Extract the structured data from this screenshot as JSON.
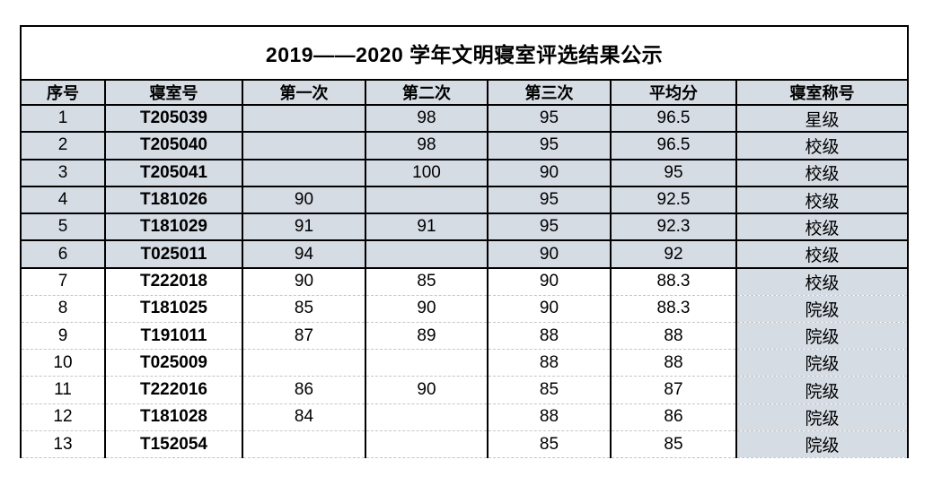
{
  "page": {
    "title": "2019——2020 学年文明寝室评选结果公示"
  },
  "table": {
    "headers": [
      "序号",
      "寝室号",
      "第一次",
      "第二次",
      "第三次",
      "平均分",
      "寝室称号"
    ],
    "rows": [
      {
        "no": "1",
        "room": "T205039",
        "score1": "",
        "score2": "98",
        "score3": "95",
        "avg": "96.5",
        "rank": "星级"
      },
      {
        "no": "2",
        "room": "T205040",
        "score1": "",
        "score2": "98",
        "score3": "95",
        "avg": "96.5",
        "rank": "校级"
      },
      {
        "no": "3",
        "room": "T205041",
        "score1": "",
        "score2": "100",
        "score3": "90",
        "avg": "95",
        "rank": "校级"
      },
      {
        "no": "4",
        "room": "T181026",
        "score1": "90",
        "score2": "",
        "score3": "95",
        "avg": "92.5",
        "rank": "校级"
      },
      {
        "no": "5",
        "room": "T181029",
        "score1": "91",
        "score2": "91",
        "score3": "95",
        "avg": "92.3",
        "rank": "校级"
      },
      {
        "no": "6",
        "room": "T025011",
        "score1": "94",
        "score2": "",
        "score3": "90",
        "avg": "92",
        "rank": "校级"
      },
      {
        "no": "7",
        "room": "T222018",
        "score1": "90",
        "score2": "85",
        "score3": "90",
        "avg": "88.3",
        "rank": "校级"
      },
      {
        "no": "8",
        "room": "T181025",
        "score1": "85",
        "score2": "90",
        "score3": "90",
        "avg": "88.3",
        "rank": "院级"
      },
      {
        "no": "9",
        "room": "T191011",
        "score1": "87",
        "score2": "89",
        "score3": "88",
        "avg": "88",
        "rank": "院级"
      },
      {
        "no": "10",
        "room": "T025009",
        "score1": "",
        "score2": "",
        "score3": "88",
        "avg": "88",
        "rank": "院级"
      },
      {
        "no": "11",
        "room": "T222016",
        "score1": "86",
        "score2": "90",
        "score3": "85",
        "avg": "87",
        "rank": "院级"
      },
      {
        "no": "12",
        "room": "T181028",
        "score1": "84",
        "score2": "",
        "score3": "88",
        "avg": "86",
        "rank": "院级"
      },
      {
        "no": "13",
        "room": "T152054",
        "score1": "",
        "score2": "",
        "score3": "85",
        "avg": "85",
        "rank": "院级"
      }
    ],
    "shaded_row_count": 6
  },
  "colors": {
    "cell_shade": "#d6dce4",
    "table_border": "#000000",
    "light_divider": "#c6c6c6",
    "text": "#000000",
    "background": "#ffffff"
  }
}
